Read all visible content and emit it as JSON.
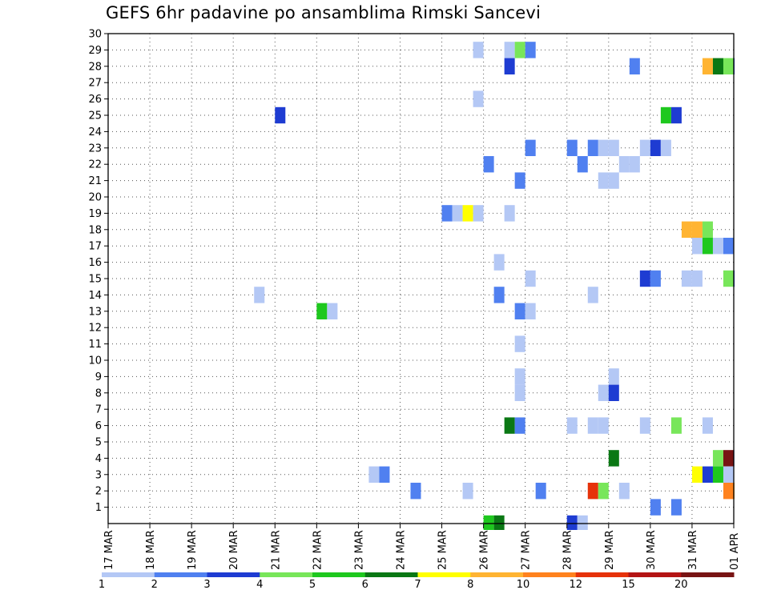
{
  "chart_data": {
    "type": "heatmap",
    "title": "GEFS 6hr padavine po ansamblima Rimski Sancevi",
    "y_ticks": [
      1,
      2,
      3,
      4,
      5,
      6,
      7,
      8,
      9,
      10,
      11,
      12,
      13,
      14,
      15,
      16,
      17,
      18,
      19,
      20,
      21,
      22,
      23,
      24,
      25,
      26,
      27,
      28,
      29,
      30
    ],
    "ylim": [
      0,
      30
    ],
    "x_ticks": [
      "17 MAR",
      "18 MAR",
      "19 MAR",
      "20 MAR",
      "21 MAR",
      "22 MAR",
      "23 MAR",
      "24 MAR",
      "25 MAR",
      "26 MAR",
      "27 MAR",
      "28 MAR",
      "29 MAR",
      "30 MAR",
      "31 MAR",
      "01 APR"
    ],
    "xlim": [
      0,
      15
    ],
    "grid": true,
    "colorbar": {
      "labels": [
        "1",
        "2",
        "3",
        "4",
        "5",
        "6",
        "7",
        "8",
        "10",
        "12",
        "15",
        "20"
      ],
      "colors": [
        "#b4c8f5",
        "#5080f0",
        "#1e3cd2",
        "#78e65a",
        "#1ec81e",
        "#0a7814",
        "#ffff00",
        "#ffb432",
        "#ff821e",
        "#e6320a",
        "#b41414",
        "#781414"
      ]
    },
    "cells": [
      {
        "x": 8.75,
        "y": 29,
        "c": 0
      },
      {
        "x": 9.5,
        "y": 29,
        "c": 0
      },
      {
        "x": 9.75,
        "y": 29,
        "c": 3
      },
      {
        "x": 10.0,
        "y": 29,
        "c": 1
      },
      {
        "x": 9.5,
        "y": 28,
        "c": 2
      },
      {
        "x": 12.5,
        "y": 28,
        "c": 1
      },
      {
        "x": 14.25,
        "y": 28,
        "c": 7
      },
      {
        "x": 14.5,
        "y": 28,
        "c": 5
      },
      {
        "x": 14.75,
        "y": 28,
        "c": 3
      },
      {
        "x": 15.0,
        "y": 28,
        "c": 2
      },
      {
        "x": 8.75,
        "y": 26,
        "c": 0
      },
      {
        "x": 4.0,
        "y": 25,
        "c": 2
      },
      {
        "x": 13.25,
        "y": 25,
        "c": 4
      },
      {
        "x": 13.5,
        "y": 25,
        "c": 2
      },
      {
        "x": 10.0,
        "y": 23,
        "c": 1
      },
      {
        "x": 11.0,
        "y": 23,
        "c": 1
      },
      {
        "x": 11.5,
        "y": 23,
        "c": 1
      },
      {
        "x": 11.75,
        "y": 23,
        "c": 0
      },
      {
        "x": 12.0,
        "y": 23,
        "c": 0
      },
      {
        "x": 12.75,
        "y": 23,
        "c": 0
      },
      {
        "x": 13.0,
        "y": 23,
        "c": 2
      },
      {
        "x": 13.25,
        "y": 23,
        "c": 0
      },
      {
        "x": 9.0,
        "y": 22,
        "c": 1
      },
      {
        "x": 11.25,
        "y": 22,
        "c": 1
      },
      {
        "x": 12.25,
        "y": 22,
        "c": 0
      },
      {
        "x": 12.5,
        "y": 22,
        "c": 0
      },
      {
        "x": 9.75,
        "y": 21,
        "c": 1
      },
      {
        "x": 11.75,
        "y": 21,
        "c": 0
      },
      {
        "x": 12.0,
        "y": 21,
        "c": 0
      },
      {
        "x": 8.0,
        "y": 19,
        "c": 1
      },
      {
        "x": 8.25,
        "y": 19,
        "c": 0
      },
      {
        "x": 8.5,
        "y": 19,
        "c": 6
      },
      {
        "x": 8.75,
        "y": 19,
        "c": 0
      },
      {
        "x": 9.5,
        "y": 19,
        "c": 0
      },
      {
        "x": 13.75,
        "y": 18,
        "c": 7
      },
      {
        "x": 14.0,
        "y": 18,
        "c": 7
      },
      {
        "x": 14.25,
        "y": 18,
        "c": 3
      },
      {
        "x": 14.0,
        "y": 17,
        "c": 0
      },
      {
        "x": 14.25,
        "y": 17,
        "c": 4
      },
      {
        "x": 14.5,
        "y": 17,
        "c": 0
      },
      {
        "x": 14.75,
        "y": 17,
        "c": 1
      },
      {
        "x": 9.25,
        "y": 16,
        "c": 0
      },
      {
        "x": 10.0,
        "y": 15,
        "c": 0
      },
      {
        "x": 12.75,
        "y": 15,
        "c": 2
      },
      {
        "x": 13.0,
        "y": 15,
        "c": 1
      },
      {
        "x": 13.75,
        "y": 15,
        "c": 0
      },
      {
        "x": 14.0,
        "y": 15,
        "c": 0
      },
      {
        "x": 14.75,
        "y": 15,
        "c": 3
      },
      {
        "x": 15.0,
        "y": 15,
        "c": 2
      },
      {
        "x": 3.5,
        "y": 14,
        "c": 0
      },
      {
        "x": 9.25,
        "y": 14,
        "c": 1
      },
      {
        "x": 11.5,
        "y": 14,
        "c": 0
      },
      {
        "x": 5.0,
        "y": 13,
        "c": 4
      },
      {
        "x": 5.25,
        "y": 13,
        "c": 0
      },
      {
        "x": 9.75,
        "y": 13,
        "c": 1
      },
      {
        "x": 10.0,
        "y": 13,
        "c": 0
      },
      {
        "x": 9.75,
        "y": 11,
        "c": 0
      },
      {
        "x": 9.75,
        "y": 9,
        "c": 0
      },
      {
        "x": 12.0,
        "y": 9,
        "c": 0
      },
      {
        "x": 9.75,
        "y": 8,
        "c": 0
      },
      {
        "x": 11.75,
        "y": 8,
        "c": 0
      },
      {
        "x": 12.0,
        "y": 8,
        "c": 2
      },
      {
        "x": 9.5,
        "y": 6,
        "c": 5
      },
      {
        "x": 9.75,
        "y": 6,
        "c": 1
      },
      {
        "x": 11.0,
        "y": 6,
        "c": 0
      },
      {
        "x": 11.5,
        "y": 6,
        "c": 0
      },
      {
        "x": 11.75,
        "y": 6,
        "c": 0
      },
      {
        "x": 12.75,
        "y": 6,
        "c": 0
      },
      {
        "x": 13.5,
        "y": 6,
        "c": 3
      },
      {
        "x": 14.25,
        "y": 6,
        "c": 0
      },
      {
        "x": 12.0,
        "y": 4,
        "c": 5
      },
      {
        "x": 14.5,
        "y": 4,
        "c": 3
      },
      {
        "x": 14.75,
        "y": 4,
        "c": 11
      },
      {
        "x": 15.0,
        "y": 4,
        "c": 0
      },
      {
        "x": 6.25,
        "y": 3,
        "c": 0
      },
      {
        "x": 6.5,
        "y": 3,
        "c": 1
      },
      {
        "x": 14.0,
        "y": 3,
        "c": 6
      },
      {
        "x": 14.25,
        "y": 3,
        "c": 2
      },
      {
        "x": 14.5,
        "y": 3,
        "c": 4
      },
      {
        "x": 14.75,
        "y": 3,
        "c": 0
      },
      {
        "x": 7.25,
        "y": 2,
        "c": 1
      },
      {
        "x": 8.5,
        "y": 2,
        "c": 0
      },
      {
        "x": 10.25,
        "y": 2,
        "c": 1
      },
      {
        "x": 11.5,
        "y": 2,
        "c": 9
      },
      {
        "x": 11.75,
        "y": 2,
        "c": 3
      },
      {
        "x": 12.25,
        "y": 2,
        "c": 0
      },
      {
        "x": 14.75,
        "y": 2,
        "c": 8
      },
      {
        "x": 15.0,
        "y": 2,
        "c": 7
      },
      {
        "x": 13.0,
        "y": 1,
        "c": 1
      },
      {
        "x": 13.5,
        "y": 1,
        "c": 1
      },
      {
        "x": 9.0,
        "y": 0,
        "c": 4
      },
      {
        "x": 9.25,
        "y": 0,
        "c": 5
      },
      {
        "x": 11.0,
        "y": 0,
        "c": 2
      },
      {
        "x": 11.25,
        "y": 0,
        "c": 0
      }
    ]
  }
}
